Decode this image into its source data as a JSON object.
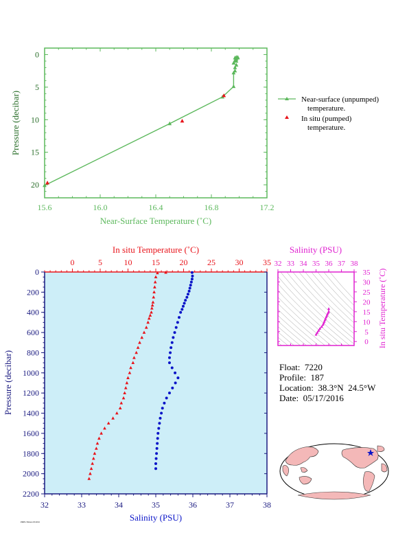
{
  "colors": {
    "green": "#5cb85c",
    "red": "#e8131a",
    "blue": "#0a14c8",
    "magenta": "#e020d0",
    "navy": "#1a1a80",
    "plot_bg": "#cdeef8"
  },
  "info": {
    "float_label": "Float:",
    "float_value": "7220",
    "profile_label": "Profile:",
    "profile_value": "187",
    "location_label": "Location:",
    "location_value": "38.3°N  24.5°W",
    "date_label": "Date:",
    "date_value": "05/17/2016"
  },
  "footnote": "PMEL/NOAA 05/2016",
  "chart_data": [
    {
      "type": "line",
      "xlabel": "Near-Surface Temperature (˚C)",
      "ylabel": "Pressure (decibar)",
      "xlim": [
        15.6,
        17.2
      ],
      "ylim": [
        22,
        -1
      ],
      "x_ticks": [
        "15.6",
        "16.0",
        "16.4",
        "16.8",
        "17.2"
      ],
      "y_ticks": [
        "0",
        "5",
        "10",
        "15",
        "20"
      ],
      "legend": {
        "placement": "right",
        "unpumped": "Near-surface (unpumped)",
        "unpumped_cont": "temperature.",
        "pumped": "In situ (pumped)",
        "pumped_cont": "temperature."
      },
      "series": [
        {
          "name": "Near-surface (unpumped) temperature.",
          "x": [
            15.6,
            16.5,
            16.88,
            16.96,
            16.96,
            16.97,
            16.97,
            16.98,
            16.96,
            16.98,
            16.97,
            16.98,
            16.99,
            16.97,
            16.98,
            16.99
          ],
          "y": [
            20.1,
            10.6,
            6.5,
            4.9,
            2.8,
            2.5,
            2.0,
            1.6,
            1.3,
            1.0,
            0.9,
            0.7,
            0.5,
            0.5,
            0.4,
            0.4
          ]
        },
        {
          "name": "In situ (pumped) temperature.",
          "x": [
            15.62,
            16.59,
            16.89
          ],
          "y": [
            19.7,
            10.2,
            6.3
          ]
        }
      ]
    },
    {
      "type": "scatter",
      "title": "In situ Temperature (˚C)",
      "xlabel": "Salinity (PSU)",
      "ylabel": "Pressure (decibar)",
      "temperature_lim": [
        -5,
        35
      ],
      "salinity_lim": [
        32,
        38
      ],
      "ylim": [
        2200,
        0
      ],
      "temperature_ticks": [
        "0",
        "5",
        "10",
        "15",
        "20",
        "25",
        "30",
        "35"
      ],
      "salinity_ticks": [
        "32",
        "33",
        "34",
        "35",
        "36",
        "37",
        "38"
      ],
      "pressure_ticks": [
        "0",
        "200",
        "400",
        "600",
        "800",
        "1000",
        "1200",
        "1400",
        "1600",
        "1800",
        "2000",
        "2200"
      ],
      "series": [
        {
          "name": "Temperature",
          "temperature": [
            16.8,
            15.3,
            15.0,
            14.9,
            14.8,
            14.7,
            14.6,
            14.5,
            14.4,
            14.3,
            14.2,
            14.0,
            13.8,
            13.6,
            13.3,
            12.9,
            12.5,
            12.1,
            11.8,
            11.5,
            11.1,
            10.9,
            10.5,
            10.3,
            10.0,
            9.8,
            9.6,
            9.4,
            9.2,
            8.8,
            8.6,
            8.0,
            7.3,
            6.5,
            5.8,
            5.2,
            4.8,
            4.5,
            4.3,
            4.0,
            3.8,
            3.6,
            3.4,
            3.2,
            3.0
          ],
          "pressure": [
            5,
            10,
            50,
            100,
            150,
            200,
            250,
            300,
            330,
            360,
            400,
            430,
            460,
            500,
            550,
            600,
            650,
            700,
            750,
            800,
            850,
            900,
            950,
            1000,
            1050,
            1100,
            1150,
            1200,
            1250,
            1300,
            1350,
            1400,
            1450,
            1500,
            1550,
            1600,
            1650,
            1700,
            1750,
            1800,
            1850,
            1900,
            1950,
            2000,
            2050
          ]
        },
        {
          "name": "Salinity",
          "salinity": [
            35.98,
            35.99,
            35.98,
            35.96,
            35.94,
            35.92,
            35.9,
            35.87,
            35.84,
            35.8,
            35.77,
            35.74,
            35.71,
            35.67,
            35.63,
            35.59,
            35.55,
            35.51,
            35.47,
            35.44,
            35.41,
            35.39,
            35.37,
            35.37,
            35.44,
            35.52,
            35.6,
            35.53,
            35.45,
            35.37,
            35.29,
            35.23,
            35.18,
            35.15,
            35.12,
            35.1,
            35.08,
            35.06,
            35.05,
            35.04,
            35.03,
            35.02,
            35.01,
            35.0,
            35.0
          ],
          "pressure": [
            5,
            40,
            70,
            100,
            130,
            160,
            190,
            220,
            250,
            280,
            310,
            340,
            370,
            400,
            450,
            500,
            550,
            600,
            650,
            700,
            750,
            800,
            850,
            900,
            950,
            1000,
            1050,
            1100,
            1150,
            1200,
            1250,
            1300,
            1350,
            1400,
            1450,
            1500,
            1550,
            1600,
            1650,
            1700,
            1750,
            1800,
            1850,
            1900,
            1950
          ]
        }
      ]
    },
    {
      "type": "scatter",
      "title": "Salinity (PSU)",
      "ylabel": "In situ Temperature (˚C)",
      "xlim": [
        32,
        38
      ],
      "ylim": [
        -2,
        35
      ],
      "x_ticks": [
        "32",
        "33",
        "34",
        "35",
        "36",
        "37",
        "38"
      ],
      "y_ticks": [
        "0",
        "5",
        "10",
        "15",
        "20",
        "25",
        "30",
        "35"
      ],
      "series": [
        {
          "name": "T-S",
          "salinity": [
            35.0,
            35.1,
            35.2,
            35.3,
            35.45,
            35.55,
            35.6,
            35.65,
            35.7,
            35.75,
            35.8,
            35.85,
            35.9,
            35.95,
            36.0,
            36.0
          ],
          "temperature": [
            3.5,
            4.5,
            5.5,
            6.5,
            7.5,
            8.5,
            9.2,
            10.0,
            10.8,
            11.5,
            12.3,
            13.0,
            13.8,
            14.5,
            15.0,
            16.5
          ]
        }
      ]
    }
  ]
}
